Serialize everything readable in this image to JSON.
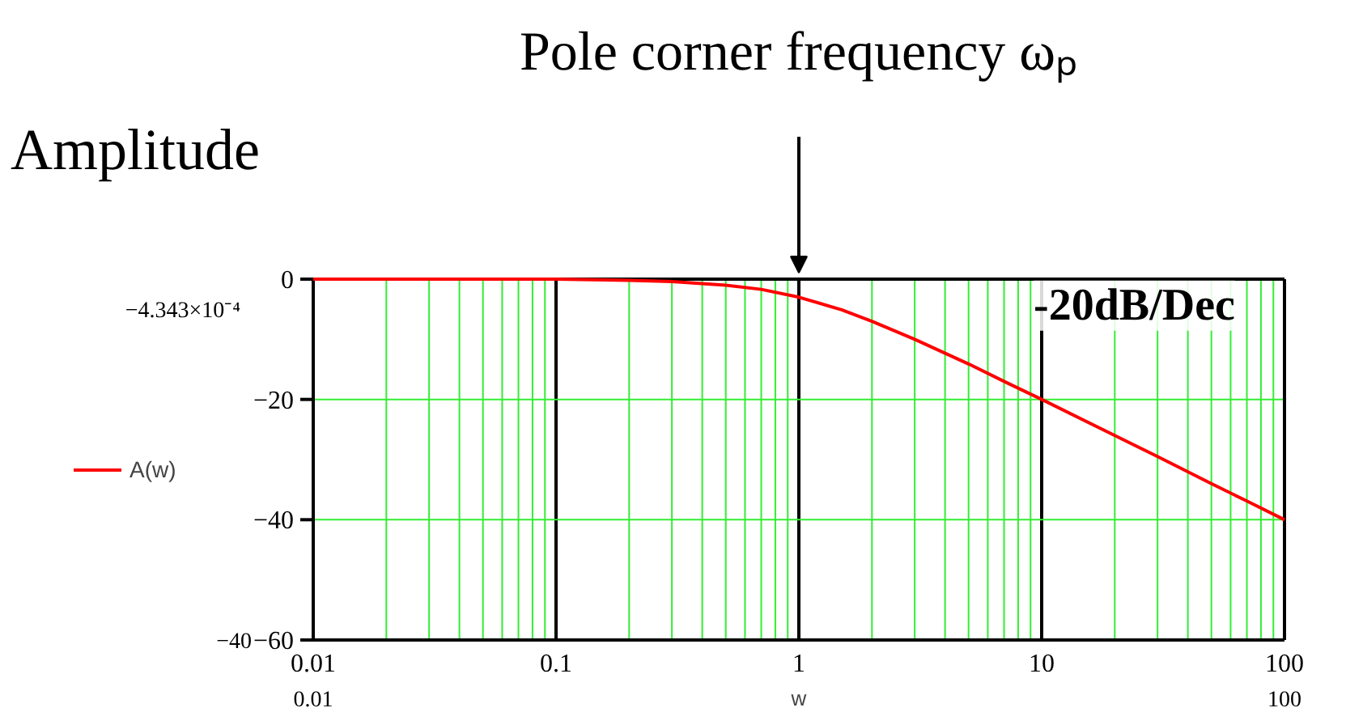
{
  "chart_data": {
    "type": "line",
    "title": "Amplitude",
    "xlabel": "w",
    "x": [
      0.01,
      0.02,
      0.05,
      0.1,
      0.2,
      0.3,
      0.5,
      0.7,
      1,
      1.5,
      2,
      3,
      5,
      7,
      10,
      20,
      30,
      50,
      70,
      100
    ],
    "series": [
      {
        "name": "A(w)",
        "color": "#ff0000",
        "values": [
          0,
          0,
          0,
          0,
          -0.2,
          -0.4,
          -1,
          -1.7,
          -3,
          -5.1,
          -7,
          -10,
          -14.1,
          -17,
          -20,
          -26,
          -29.5,
          -34,
          -36.9,
          -40
        ]
      }
    ],
    "log": "x",
    "xlim": [
      0.01,
      100
    ],
    "xticks": [
      0.01,
      0.1,
      1,
      10,
      100
    ],
    "ylim": [
      -60,
      0
    ],
    "yticks": [
      0,
      -20,
      -40,
      -60
    ],
    "grid": true,
    "legend": "left",
    "annotations": [
      "Pole corner frequency ωₚ",
      {
        "text": "-20dB/Dec",
        "x": 10,
        "y": -20
      },
      "−4.343×10⁻⁴",
      "−40",
      "0.01",
      "100"
    ]
  }
}
